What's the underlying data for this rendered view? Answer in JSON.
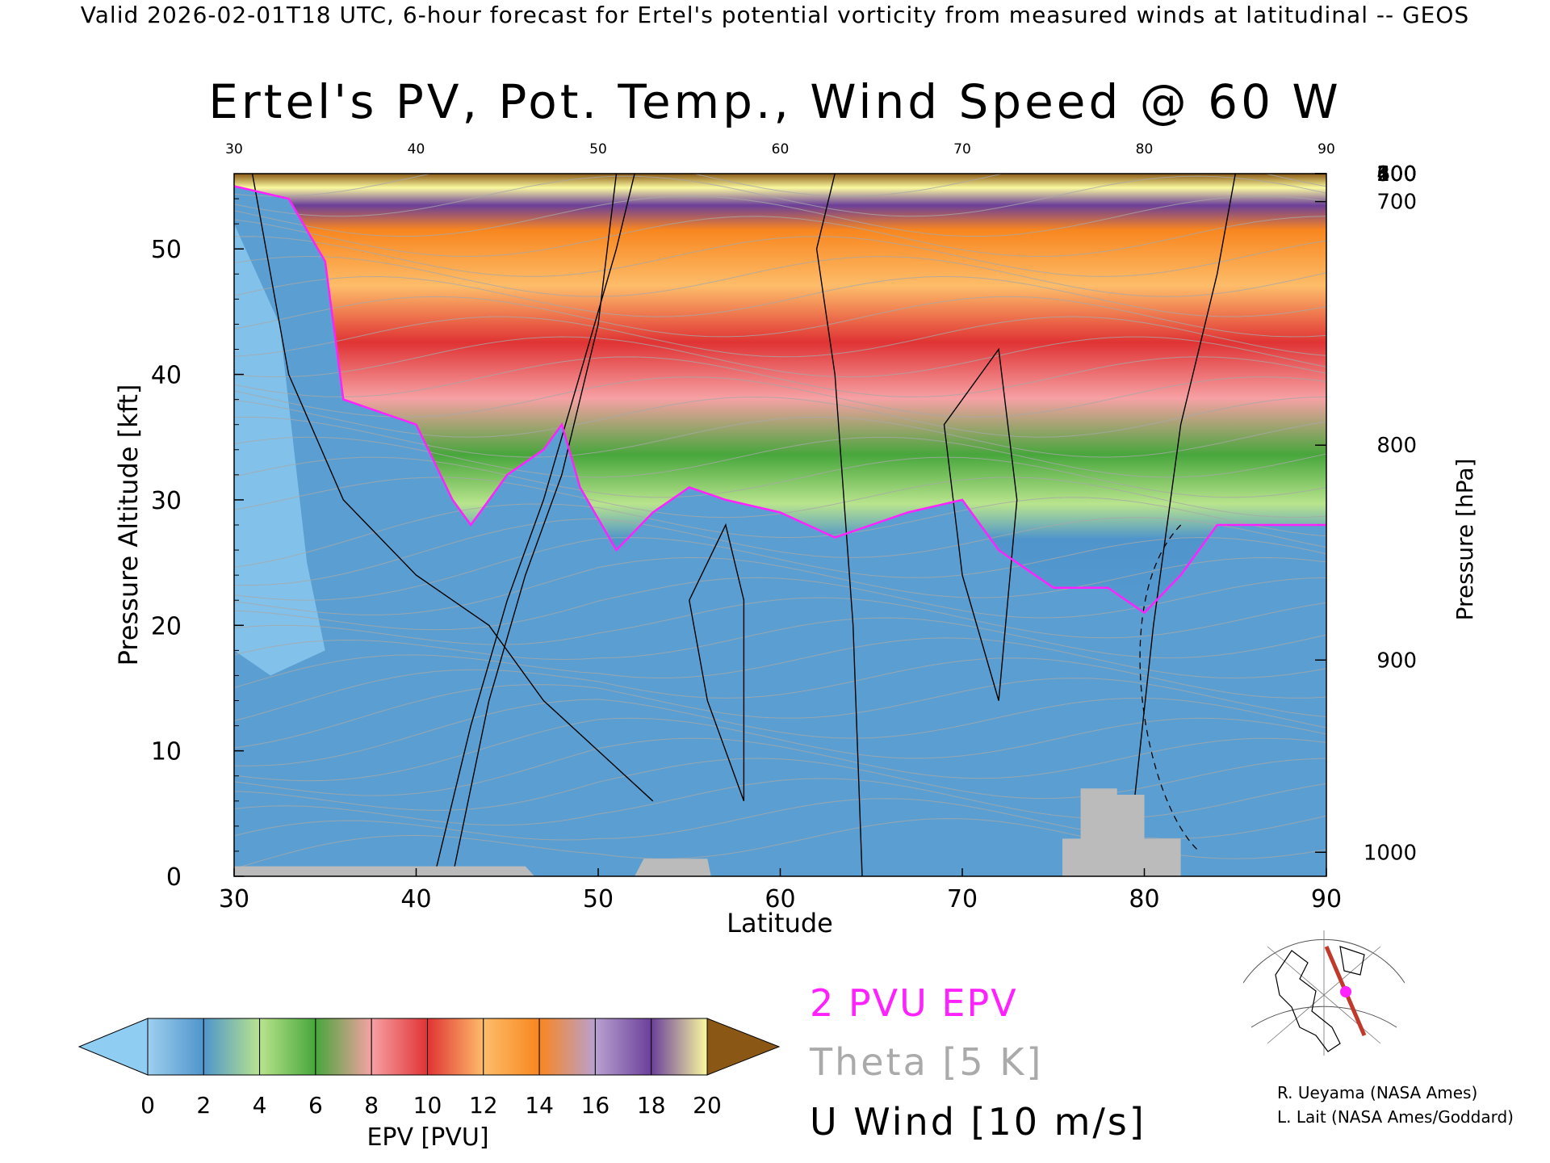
{
  "header": "Valid 2026-02-01T18 UTC, 6-hour forecast for Ertel's potential vorticity from measured winds at latitudinal -- GEOS",
  "chart_data": {
    "type": "heatmap",
    "title": "Ertel's PV, Pot. Temp., Wind Speed @ 60 W",
    "xlabel": "Latitude",
    "ylabel": "Pressure Altitude [kft]",
    "y2label": "Pressure [hPa]",
    "xlim": [
      30,
      90
    ],
    "ylim": [
      0,
      56
    ],
    "x_ticks": [
      30,
      40,
      50,
      60,
      70,
      80,
      90
    ],
    "top_ticks": [
      30,
      40,
      50,
      60,
      70,
      80,
      90
    ],
    "y_ticks": [
      0,
      10,
      20,
      30,
      40,
      50
    ],
    "pressure_ticks": [
      1000,
      900,
      800,
      700,
      600,
      500,
      400,
      300,
      200,
      100
    ],
    "tropopause_2pvu_kft": [
      [
        30,
        55
      ],
      [
        33,
        54
      ],
      [
        35,
        49
      ],
      [
        36,
        38
      ],
      [
        38,
        37
      ],
      [
        40,
        36
      ],
      [
        42,
        30
      ],
      [
        43,
        28
      ],
      [
        45,
        32
      ],
      [
        47,
        34
      ],
      [
        48,
        36
      ],
      [
        49,
        31
      ],
      [
        51,
        26
      ],
      [
        53,
        29
      ],
      [
        55,
        31
      ],
      [
        57,
        30
      ],
      [
        60,
        29
      ],
      [
        63,
        27
      ],
      [
        67,
        29
      ],
      [
        70,
        30
      ],
      [
        72,
        26
      ],
      [
        75,
        23
      ],
      [
        78,
        23
      ],
      [
        80,
        21
      ],
      [
        82,
        24
      ],
      [
        84,
        28
      ],
      [
        87,
        28
      ],
      [
        90,
        28
      ]
    ],
    "surface_kft": [
      [
        30,
        0.8
      ],
      [
        46,
        0.8
      ],
      [
        46.5,
        0
      ],
      [
        52,
        0
      ],
      [
        52.5,
        1.4
      ],
      [
        56,
        1.4
      ],
      [
        56.2,
        0
      ],
      [
        75.5,
        0
      ],
      [
        75.5,
        3
      ],
      [
        76.5,
        3
      ],
      [
        76.5,
        7
      ],
      [
        78.5,
        7
      ],
      [
        78.5,
        6.5
      ],
      [
        80,
        6.5
      ],
      [
        80,
        3
      ],
      [
        82,
        3
      ],
      [
        82,
        0
      ]
    ],
    "colorbar": {
      "label": "EPV [PVU]",
      "ticks": [
        0,
        2,
        4,
        6,
        8,
        10,
        12,
        14,
        16,
        18,
        20
      ],
      "colors": [
        "#8fcdf2",
        "#4f95cc",
        "#b9e48d",
        "#47a63c",
        "#f6a1a4",
        "#e03334",
        "#fdbd6a",
        "#f8861f",
        "#b8a1d0",
        "#6b3f9a",
        "#fafaa0",
        "#8b5714"
      ]
    },
    "legend": [
      "2 PVU EPV",
      "Theta [5 K]",
      "U Wind [10 m/s]"
    ]
  },
  "credits": [
    "R. Ueyama (NASA Ames)",
    "L. Lait (NASA Ames/Goddard)"
  ],
  "colors": {
    "pv_line": "#ff22ff",
    "theta_line": "#aaaaaa",
    "wind_line": "#000000",
    "surface": "#bbbbbb",
    "section_line": "#c0392b"
  }
}
